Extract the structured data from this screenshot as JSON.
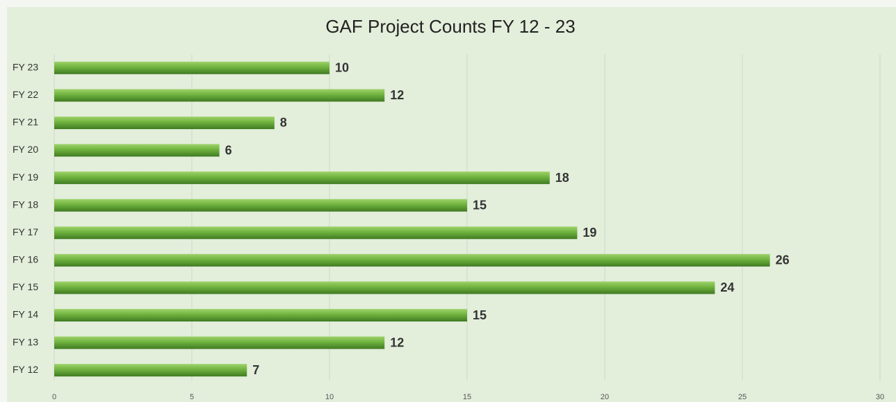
{
  "chart_data": {
    "type": "bar",
    "orientation": "horizontal",
    "title": "GAF Project Counts FY 12 - 23",
    "categories": [
      "FY 23",
      "FY 22",
      "FY 21",
      "FY 20",
      "FY 19",
      "FY 18",
      "FY 17",
      "FY 16",
      "FY 15",
      "FY 14",
      "FY 13",
      "FY 12"
    ],
    "values": [
      10,
      12,
      8,
      6,
      18,
      15,
      19,
      26,
      24,
      15,
      12,
      7
    ],
    "color": "#6fb23e",
    "xlim": [
      0,
      30
    ],
    "xticks": [
      0,
      5,
      10,
      15,
      20,
      25,
      30
    ],
    "grid": true
  }
}
